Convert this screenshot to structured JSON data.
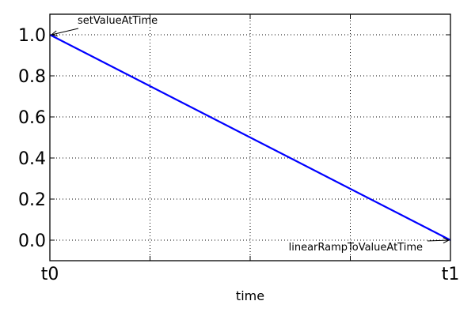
{
  "chart_data": {
    "type": "line",
    "x": [
      "t0",
      "t1"
    ],
    "x_categories": [
      "t0",
      "",
      "",
      "",
      "t1"
    ],
    "series": [
      {
        "values": [
          1.0,
          0.0
        ],
        "color": "#0000ff"
      }
    ],
    "xlabel": "time",
    "ylabel": "",
    "title": "",
    "ylim": [
      -0.1,
      1.1
    ],
    "yticks": [
      "0.0",
      "0.2",
      "0.4",
      "0.6",
      "0.8",
      "1.0"
    ],
    "grid": true,
    "annotations": [
      {
        "text": "setValueAtTime",
        "x": "t0",
        "y": 1.0
      },
      {
        "text": "linearRampToValueAtTime",
        "x": "t1",
        "y": 0.0
      }
    ]
  }
}
